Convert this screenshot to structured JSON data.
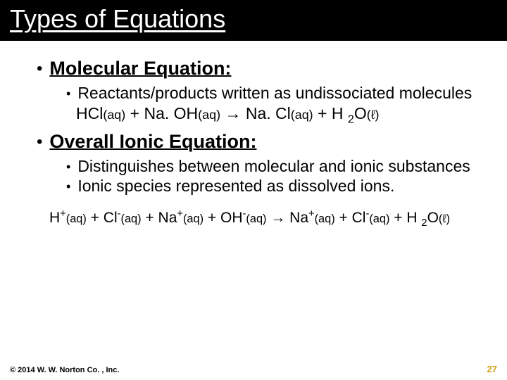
{
  "title": "Types of Equations",
  "sections": [
    {
      "heading": "Molecular Equation:",
      "bullets": [
        "Reactants/products written as undissociated molecules"
      ],
      "equation_html": "HCl<span class='state'>(aq)</span> + Na. OH<span class='state'>(aq)</span> → Na. Cl<span class='state'>(aq)</span> + H <sub>2</sub>O<span class='state'>(ℓ)</span>"
    },
    {
      "heading": "Overall Ionic Equation:",
      "bullets": [
        "Distinguishes between molecular and ionic substances",
        "Ionic species represented as dissolved ions."
      ],
      "equation_html": "H<sup>+</sup><span class='state'>(aq)</span> + Cl<sup>-</sup><span class='state'>(aq)</span> + Na<sup>+</sup><span class='state'>(aq)</span> + OH<sup>-</sup><span class='state'>(aq)</span> → Na<sup>+</sup><span class='state'>(aq)</span> + Cl<sup>-</sup><span class='state'>(aq)</span> + H <sub>2</sub>O<span class='state'>(ℓ)</span>"
    }
  ],
  "footer": {
    "copyright": "© 2014 W. W. Norton Co. , Inc.",
    "page": "27"
  },
  "colors": {
    "title_bg": "#000000",
    "title_fg": "#ffffff",
    "body_fg": "#000000",
    "page_bg": "#ffffff",
    "pagenum_fg": "#d4a017"
  }
}
